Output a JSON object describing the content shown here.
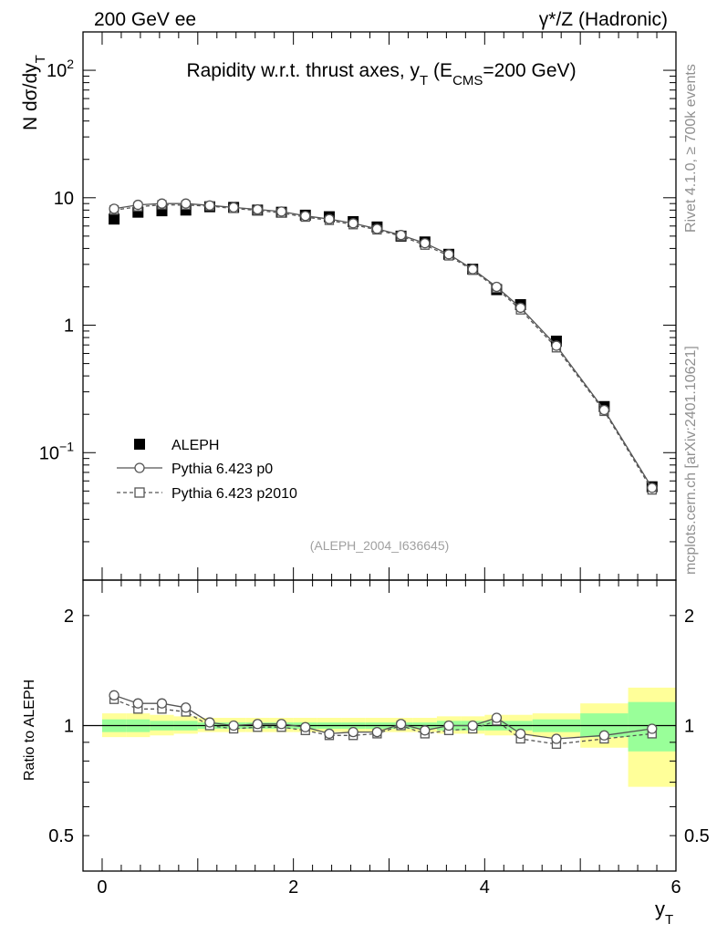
{
  "header": {
    "left": "200 GeV ee",
    "right": "γ*/Z (Hadronic)"
  },
  "side_labels": {
    "top": "Rivet 4.1.0, ≥ 700k events",
    "bottom": "mcplots.cern.ch [arXiv:2401.10621]"
  },
  "chart_data": [
    {
      "type": "scatter",
      "panel": "main",
      "title": "Rapidity w.r.t. thrust axes, y_T (E_CMS=200 GeV)",
      "title_parts": {
        "main": "Rapidity w.r.t. thrust axes, y",
        "sub_T": "T",
        "open": " (E",
        "sub_cms": "CMS",
        "close": "=200 GeV)"
      },
      "ylabel": "N  dσ/dy_T",
      "ylabel_parts": {
        "main": "N  dσ/dy",
        "sub": "T"
      },
      "yscale": "log",
      "ylim": [
        0.01,
        200
      ],
      "xlim": [
        -0.2,
        6.0
      ],
      "yticks": [
        {
          "value": 100,
          "label": "10",
          "exp": "2"
        },
        {
          "value": 10,
          "label": "10",
          "exp": ""
        },
        {
          "value": 1,
          "label": "1",
          "exp": ""
        },
        {
          "value": 0.1,
          "label": "10",
          "exp": "−1"
        }
      ],
      "watermark": "(ALEPH_2004_I636645)",
      "legend_position": "lower-left",
      "x": [
        0.125,
        0.375,
        0.625,
        0.875,
        1.125,
        1.375,
        1.625,
        1.875,
        2.125,
        2.375,
        2.625,
        2.875,
        3.125,
        3.375,
        3.625,
        3.875,
        4.125,
        4.375,
        4.75,
        5.25,
        5.75
      ],
      "series": [
        {
          "name": "ALEPH",
          "marker": "filled-square",
          "color": "#000000",
          "values": [
            6.8,
            7.7,
            7.9,
            8.0,
            8.5,
            8.4,
            8.0,
            7.7,
            7.3,
            7.1,
            6.5,
            5.9,
            5.0,
            4.5,
            3.6,
            2.75,
            1.9,
            1.45,
            0.75,
            0.23,
            0.054
          ]
        },
        {
          "name": "Pythia 6.423 p0",
          "marker": "open-circle",
          "line": "solid",
          "color": "#555555",
          "values": [
            8.2,
            8.8,
            9.0,
            9.0,
            8.7,
            8.4,
            8.1,
            7.8,
            7.2,
            6.8,
            6.3,
            5.7,
            5.1,
            4.4,
            3.6,
            2.75,
            2.0,
            1.37,
            0.69,
            0.216,
            0.053
          ]
        },
        {
          "name": "Pythia 6.423 p2010",
          "marker": "open-square",
          "line": "dashed",
          "color": "#555555",
          "values": [
            8.0,
            8.5,
            8.8,
            8.75,
            8.6,
            8.25,
            7.95,
            7.6,
            7.05,
            6.65,
            6.15,
            5.6,
            5.0,
            4.25,
            3.5,
            2.7,
            1.95,
            1.32,
            0.665,
            0.211,
            0.051
          ]
        }
      ]
    },
    {
      "type": "scatter",
      "panel": "ratio",
      "ylabel": "Ratio to ALEPH",
      "xlabel": "y_T",
      "xlabel_parts": {
        "main": "y",
        "sub": "T"
      },
      "yscale": "log",
      "ylim": [
        0.4,
        2.5
      ],
      "xlim": [
        -0.2,
        6.0
      ],
      "yticks": [
        {
          "value": 2,
          "label": "2"
        },
        {
          "value": 1,
          "label": "1"
        },
        {
          "value": 0.5,
          "label": "0.5"
        }
      ],
      "xticks": [
        {
          "value": 0,
          "label": "0"
        },
        {
          "value": 2,
          "label": "2"
        },
        {
          "value": 4,
          "label": "4"
        },
        {
          "value": 6,
          "label": "6"
        }
      ],
      "bins": [
        [
          0,
          0.25
        ],
        [
          0.25,
          0.5
        ],
        [
          0.5,
          0.75
        ],
        [
          0.75,
          1.0
        ],
        [
          1.0,
          1.25
        ],
        [
          1.25,
          1.5
        ],
        [
          1.5,
          1.75
        ],
        [
          1.75,
          2.0
        ],
        [
          2.0,
          2.25
        ],
        [
          2.25,
          2.5
        ],
        [
          2.5,
          2.75
        ],
        [
          2.75,
          3.0
        ],
        [
          3.0,
          3.25
        ],
        [
          3.25,
          3.5
        ],
        [
          3.5,
          3.75
        ],
        [
          3.75,
          4.0
        ],
        [
          4.0,
          4.25
        ],
        [
          4.25,
          4.5
        ],
        [
          4.5,
          5.0
        ],
        [
          5.0,
          5.5
        ],
        [
          5.5,
          6.0
        ]
      ],
      "band_outer": [
        [
          0.93,
          1.08
        ],
        [
          0.93,
          1.08
        ],
        [
          0.94,
          1.07
        ],
        [
          0.95,
          1.06
        ],
        [
          0.96,
          1.05
        ],
        [
          0.96,
          1.05
        ],
        [
          0.96,
          1.05
        ],
        [
          0.96,
          1.05
        ],
        [
          0.96,
          1.05
        ],
        [
          0.96,
          1.05
        ],
        [
          0.96,
          1.05
        ],
        [
          0.96,
          1.05
        ],
        [
          0.96,
          1.05
        ],
        [
          0.96,
          1.05
        ],
        [
          0.95,
          1.06
        ],
        [
          0.95,
          1.06
        ],
        [
          0.94,
          1.07
        ],
        [
          0.94,
          1.07
        ],
        [
          0.93,
          1.08
        ],
        [
          0.87,
          1.15
        ],
        [
          0.68,
          1.27
        ]
      ],
      "band_inner": [
        [
          0.96,
          1.04
        ],
        [
          0.96,
          1.04
        ],
        [
          0.97,
          1.03
        ],
        [
          0.97,
          1.03
        ],
        [
          0.98,
          1.02
        ],
        [
          0.98,
          1.02
        ],
        [
          0.98,
          1.02
        ],
        [
          0.98,
          1.02
        ],
        [
          0.98,
          1.02
        ],
        [
          0.98,
          1.02
        ],
        [
          0.98,
          1.02
        ],
        [
          0.98,
          1.02
        ],
        [
          0.98,
          1.02
        ],
        [
          0.98,
          1.02
        ],
        [
          0.97,
          1.03
        ],
        [
          0.97,
          1.03
        ],
        [
          0.97,
          1.03
        ],
        [
          0.97,
          1.03
        ],
        [
          0.96,
          1.04
        ],
        [
          0.93,
          1.08
        ],
        [
          0.85,
          1.16
        ]
      ],
      "x": [
        0.125,
        0.375,
        0.625,
        0.875,
        1.125,
        1.375,
        1.625,
        1.875,
        2.125,
        2.375,
        2.625,
        2.875,
        3.125,
        3.375,
        3.625,
        3.875,
        4.125,
        4.375,
        4.75,
        5.25,
        5.75
      ],
      "series": [
        {
          "name": "Pythia 6.423 p0",
          "marker": "open-circle",
          "line": "solid",
          "color": "#555555",
          "values": [
            1.21,
            1.15,
            1.15,
            1.12,
            1.02,
            1.0,
            1.01,
            1.01,
            0.99,
            0.95,
            0.96,
            0.96,
            1.01,
            0.97,
            1.0,
            1.0,
            1.05,
            0.95,
            0.92,
            0.94,
            0.98
          ]
        },
        {
          "name": "Pythia 6.423 p2010",
          "marker": "open-square",
          "line": "dashed",
          "color": "#555555",
          "values": [
            1.18,
            1.11,
            1.11,
            1.09,
            1.0,
            0.98,
            0.99,
            0.99,
            0.97,
            0.94,
            0.94,
            0.95,
            1.0,
            0.95,
            0.97,
            0.98,
            1.03,
            0.92,
            0.89,
            0.92,
            0.95
          ]
        }
      ]
    }
  ]
}
